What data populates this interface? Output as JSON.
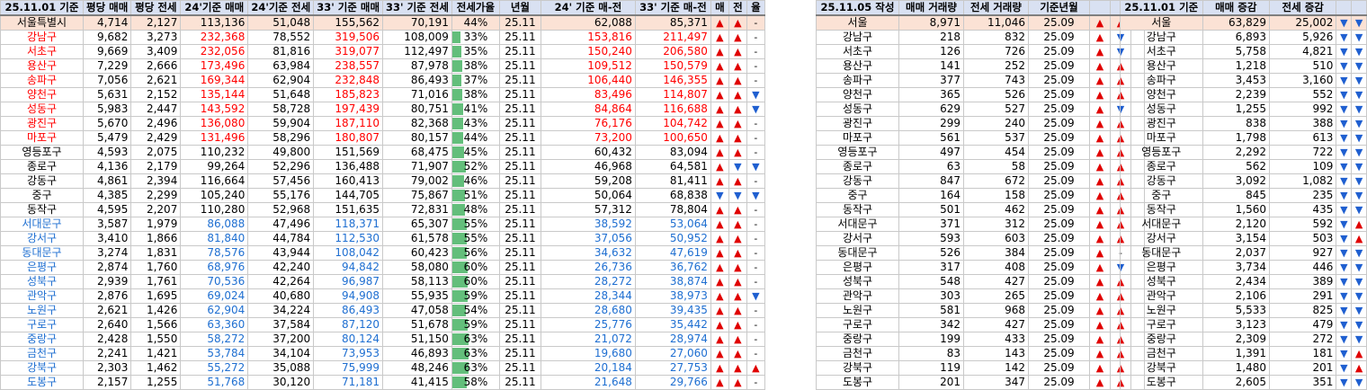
{
  "main": {
    "headers": [
      "25.11.01 기준",
      "평당 매매",
      "평당 전세",
      "24'기준 매매",
      "24'기준 전세",
      "33' 기준 매매",
      "33' 기준 전세",
      "전세가율",
      "년월",
      "24' 기준 매-전",
      "33' 기준 매-전",
      "매",
      "전",
      "율"
    ],
    "city": {
      "name": "서울특별시",
      "pm": "4,714",
      "pj": "2,127",
      "m24": "113,136",
      "j24": "51,048",
      "m33": "155,562",
      "j33": "70,191",
      "ratio": "44%",
      "ratio_value": 44,
      "ym": "25.11",
      "d24": "62,088",
      "d33": "85,371",
      "a": "up",
      "b": "up",
      "c": "-"
    },
    "rows": [
      {
        "name": "강남구",
        "c": "red",
        "pm": "9,682",
        "pj": "3,273",
        "m24": "232,368",
        "j24": "78,552",
        "m33": "319,506",
        "j33": "108,009",
        "ratio": "33%",
        "ratio_value": 33,
        "ym": "25.11",
        "d24": "153,816",
        "d33": "211,497",
        "a": "up",
        "b": "up",
        "r": "-"
      },
      {
        "name": "서초구",
        "c": "red",
        "pm": "9,669",
        "pj": "3,409",
        "m24": "232,056",
        "j24": "81,816",
        "m33": "319,077",
        "j33": "112,497",
        "ratio": "35%",
        "ratio_value": 35,
        "ym": "25.11",
        "d24": "150,240",
        "d33": "206,580",
        "a": "up",
        "b": "up",
        "r": "-"
      },
      {
        "name": "용산구",
        "c": "red",
        "pm": "7,229",
        "pj": "2,666",
        "m24": "173,496",
        "j24": "63,984",
        "m33": "238,557",
        "j33": "87,978",
        "ratio": "38%",
        "ratio_value": 38,
        "ym": "25.11",
        "d24": "109,512",
        "d33": "150,579",
        "a": "up",
        "b": "up",
        "r": "-"
      },
      {
        "name": "송파구",
        "c": "red",
        "pm": "7,056",
        "pj": "2,621",
        "m24": "169,344",
        "j24": "62,904",
        "m33": "232,848",
        "j33": "86,493",
        "ratio": "37%",
        "ratio_value": 37,
        "ym": "25.11",
        "d24": "106,440",
        "d33": "146,355",
        "a": "up",
        "b": "up",
        "r": "-"
      },
      {
        "name": "양천구",
        "c": "red",
        "pm": "5,631",
        "pj": "2,152",
        "m24": "135,144",
        "j24": "51,648",
        "m33": "185,823",
        "j33": "71,016",
        "ratio": "38%",
        "ratio_value": 38,
        "ym": "25.11",
        "d24": "83,496",
        "d33": "114,807",
        "a": "up",
        "b": "up",
        "r": "down"
      },
      {
        "name": "성동구",
        "c": "red",
        "pm": "5,983",
        "pj": "2,447",
        "m24": "143,592",
        "j24": "58,728",
        "m33": "197,439",
        "j33": "80,751",
        "ratio": "41%",
        "ratio_value": 41,
        "ym": "25.11",
        "d24": "84,864",
        "d33": "116,688",
        "a": "up",
        "b": "up",
        "r": "down"
      },
      {
        "name": "광진구",
        "c": "red",
        "pm": "5,670",
        "pj": "2,496",
        "m24": "136,080",
        "j24": "59,904",
        "m33": "187,110",
        "j33": "82,368",
        "ratio": "43%",
        "ratio_value": 43,
        "ym": "25.11",
        "d24": "76,176",
        "d33": "104,742",
        "a": "up",
        "b": "up",
        "r": "-"
      },
      {
        "name": "마포구",
        "c": "red",
        "pm": "5,479",
        "pj": "2,429",
        "m24": "131,496",
        "j24": "58,296",
        "m33": "180,807",
        "j33": "80,157",
        "ratio": "44%",
        "ratio_value": 44,
        "ym": "25.11",
        "d24": "73,200",
        "d33": "100,650",
        "a": "up",
        "b": "up",
        "r": "-"
      },
      {
        "name": "영등포구",
        "c": "blk",
        "pm": "4,593",
        "pj": "2,075",
        "m24": "110,232",
        "j24": "49,800",
        "m33": "151,569",
        "j33": "68,475",
        "ratio": "45%",
        "ratio_value": 45,
        "ym": "25.11",
        "d24": "60,432",
        "d33": "83,094",
        "a": "up",
        "b": "up",
        "r": "-"
      },
      {
        "name": "종로구",
        "c": "blk",
        "pm": "4,136",
        "pj": "2,179",
        "m24": "99,264",
        "j24": "52,296",
        "m33": "136,488",
        "j33": "71,907",
        "ratio": "52%",
        "ratio_value": 52,
        "ym": "25.11",
        "d24": "46,968",
        "d33": "64,581",
        "a": "up",
        "b": "down",
        "r": "down"
      },
      {
        "name": "강동구",
        "c": "blk",
        "pm": "4,861",
        "pj": "2,394",
        "m24": "116,664",
        "j24": "57,456",
        "m33": "160,413",
        "j33": "79,002",
        "ratio": "46%",
        "ratio_value": 46,
        "ym": "25.11",
        "d24": "59,208",
        "d33": "81,411",
        "a": "up",
        "b": "up",
        "r": "-"
      },
      {
        "name": "중구",
        "c": "blk",
        "pm": "4,385",
        "pj": "2,299",
        "m24": "105,240",
        "j24": "55,176",
        "m33": "144,705",
        "j33": "75,867",
        "ratio": "51%",
        "ratio_value": 51,
        "ym": "25.11",
        "d24": "50,064",
        "d33": "68,838",
        "a": "down",
        "b": "down",
        "r": "down"
      },
      {
        "name": "동작구",
        "c": "blk",
        "pm": "4,595",
        "pj": "2,207",
        "m24": "110,280",
        "j24": "52,968",
        "m33": "151,635",
        "j33": "72,831",
        "ratio": "48%",
        "ratio_value": 48,
        "ym": "25.11",
        "d24": "57,312",
        "d33": "78,804",
        "a": "up",
        "b": "up",
        "r": "-"
      },
      {
        "name": "서대문구",
        "c": "blue",
        "pm": "3,587",
        "pj": "1,979",
        "m24": "86,088",
        "j24": "47,496",
        "m33": "118,371",
        "j33": "65,307",
        "ratio": "55%",
        "ratio_value": 55,
        "ym": "25.11",
        "d24": "38,592",
        "d33": "53,064",
        "a": "up",
        "b": "up",
        "r": "-"
      },
      {
        "name": "강서구",
        "c": "blue",
        "pm": "3,410",
        "pj": "1,866",
        "m24": "81,840",
        "j24": "44,784",
        "m33": "112,530",
        "j33": "61,578",
        "ratio": "55%",
        "ratio_value": 55,
        "ym": "25.11",
        "d24": "37,056",
        "d33": "50,952",
        "a": "up",
        "b": "up",
        "r": "-"
      },
      {
        "name": "동대문구",
        "c": "blue",
        "pm": "3,274",
        "pj": "1,831",
        "m24": "78,576",
        "j24": "43,944",
        "m33": "108,042",
        "j33": "60,423",
        "ratio": "56%",
        "ratio_value": 56,
        "ym": "25.11",
        "d24": "34,632",
        "d33": "47,619",
        "a": "up",
        "b": "up",
        "r": "-"
      },
      {
        "name": "은평구",
        "c": "blue",
        "pm": "2,874",
        "pj": "1,760",
        "m24": "68,976",
        "j24": "42,240",
        "m33": "94,842",
        "j33": "58,080",
        "ratio": "60%",
        "ratio_value": 60,
        "ym": "25.11",
        "d24": "26,736",
        "d33": "36,762",
        "a": "up",
        "b": "up",
        "r": "-"
      },
      {
        "name": "성북구",
        "c": "blue",
        "pm": "2,939",
        "pj": "1,761",
        "m24": "70,536",
        "j24": "42,264",
        "m33": "96,987",
        "j33": "58,113",
        "ratio": "60%",
        "ratio_value": 60,
        "ym": "25.11",
        "d24": "28,272",
        "d33": "38,874",
        "a": "up",
        "b": "up",
        "r": "-"
      },
      {
        "name": "관악구",
        "c": "blue",
        "pm": "2,876",
        "pj": "1,695",
        "m24": "69,024",
        "j24": "40,680",
        "m33": "94,908",
        "j33": "55,935",
        "ratio": "59%",
        "ratio_value": 59,
        "ym": "25.11",
        "d24": "28,344",
        "d33": "38,973",
        "a": "up",
        "b": "up",
        "r": "down"
      },
      {
        "name": "노원구",
        "c": "blue",
        "pm": "2,621",
        "pj": "1,426",
        "m24": "62,904",
        "j24": "34,224",
        "m33": "86,493",
        "j33": "47,058",
        "ratio": "54%",
        "ratio_value": 54,
        "ym": "25.11",
        "d24": "28,680",
        "d33": "39,435",
        "a": "up",
        "b": "up",
        "r": "-"
      },
      {
        "name": "구로구",
        "c": "blue",
        "pm": "2,640",
        "pj": "1,566",
        "m24": "63,360",
        "j24": "37,584",
        "m33": "87,120",
        "j33": "51,678",
        "ratio": "59%",
        "ratio_value": 59,
        "ym": "25.11",
        "d24": "25,776",
        "d33": "35,442",
        "a": "up",
        "b": "up",
        "r": "-"
      },
      {
        "name": "중랑구",
        "c": "blue",
        "pm": "2,428",
        "pj": "1,550",
        "m24": "58,272",
        "j24": "37,200",
        "m33": "80,124",
        "j33": "51,150",
        "ratio": "63%",
        "ratio_value": 63,
        "ym": "25.11",
        "d24": "21,072",
        "d33": "28,974",
        "a": "up",
        "b": "up",
        "r": "-"
      },
      {
        "name": "금천구",
        "c": "blue",
        "pm": "2,241",
        "pj": "1,421",
        "m24": "53,784",
        "j24": "34,104",
        "m33": "73,953",
        "j33": "46,893",
        "ratio": "63%",
        "ratio_value": 63,
        "ym": "25.11",
        "d24": "19,680",
        "d33": "27,060",
        "a": "up",
        "b": "up",
        "r": "-"
      },
      {
        "name": "강북구",
        "c": "blue",
        "pm": "2,303",
        "pj": "1,462",
        "m24": "55,272",
        "j24": "35,088",
        "m33": "75,999",
        "j33": "48,246",
        "ratio": "63%",
        "ratio_value": 63,
        "ym": "25.11",
        "d24": "20,184",
        "d33": "27,753",
        "a": "up",
        "b": "up",
        "r": "up"
      },
      {
        "name": "도봉구",
        "c": "blue",
        "pm": "2,157",
        "pj": "1,255",
        "m24": "51,768",
        "j24": "30,120",
        "m33": "71,181",
        "j33": "41,415",
        "ratio": "58%",
        "ratio_value": 58,
        "ym": "25.11",
        "d24": "21,648",
        "d33": "29,766",
        "a": "up",
        "b": "up",
        "r": "-"
      }
    ]
  },
  "volume": {
    "headers": [
      "25.11.05 작성",
      "매매 거래량",
      "전세 거래량",
      "기준년월"
    ],
    "city": {
      "name": "서울",
      "sv": "8,971",
      "jv": "11,046",
      "ym": "25.09",
      "a": "up",
      "b": "up"
    },
    "rows": [
      {
        "name": "강남구",
        "sv": "218",
        "jv": "832",
        "ym": "25.09",
        "a": "up",
        "b": "down"
      },
      {
        "name": "서초구",
        "sv": "126",
        "jv": "726",
        "ym": "25.09",
        "a": "up",
        "b": "down"
      },
      {
        "name": "용산구",
        "sv": "141",
        "jv": "252",
        "ym": "25.09",
        "a": "up",
        "b": "up"
      },
      {
        "name": "송파구",
        "sv": "377",
        "jv": "743",
        "ym": "25.09",
        "a": "up",
        "b": "up"
      },
      {
        "name": "양천구",
        "sv": "365",
        "jv": "526",
        "ym": "25.09",
        "a": "up",
        "b": "up"
      },
      {
        "name": "성동구",
        "sv": "629",
        "jv": "527",
        "ym": "25.09",
        "a": "up",
        "b": "down"
      },
      {
        "name": "광진구",
        "sv": "299",
        "jv": "240",
        "ym": "25.09",
        "a": "up",
        "b": "up"
      },
      {
        "name": "마포구",
        "sv": "561",
        "jv": "537",
        "ym": "25.09",
        "a": "up",
        "b": "up"
      },
      {
        "name": "영등포구",
        "sv": "497",
        "jv": "454",
        "ym": "25.09",
        "a": "up",
        "b": "up"
      },
      {
        "name": "종로구",
        "sv": "63",
        "jv": "58",
        "ym": "25.09",
        "a": "up",
        "b": "up"
      },
      {
        "name": "강동구",
        "sv": "847",
        "jv": "672",
        "ym": "25.09",
        "a": "up",
        "b": "up"
      },
      {
        "name": "중구",
        "sv": "164",
        "jv": "158",
        "ym": "25.09",
        "a": "up",
        "b": "up"
      },
      {
        "name": "동작구",
        "sv": "501",
        "jv": "462",
        "ym": "25.09",
        "a": "up",
        "b": "up"
      },
      {
        "name": "서대문구",
        "sv": "371",
        "jv": "312",
        "ym": "25.09",
        "a": "up",
        "b": "up"
      },
      {
        "name": "강서구",
        "sv": "593",
        "jv": "603",
        "ym": "25.09",
        "a": "up",
        "b": "up"
      },
      {
        "name": "동대문구",
        "sv": "526",
        "jv": "384",
        "ym": "25.09",
        "a": "up",
        "b": "-"
      },
      {
        "name": "은평구",
        "sv": "317",
        "jv": "408",
        "ym": "25.09",
        "a": "up",
        "b": "down"
      },
      {
        "name": "성북구",
        "sv": "548",
        "jv": "427",
        "ym": "25.09",
        "a": "up",
        "b": "up"
      },
      {
        "name": "관악구",
        "sv": "303",
        "jv": "265",
        "ym": "25.09",
        "a": "up",
        "b": "up"
      },
      {
        "name": "노원구",
        "sv": "581",
        "jv": "968",
        "ym": "25.09",
        "a": "up",
        "b": "up"
      },
      {
        "name": "구로구",
        "sv": "342",
        "jv": "427",
        "ym": "25.09",
        "a": "up",
        "b": "up"
      },
      {
        "name": "중랑구",
        "sv": "199",
        "jv": "433",
        "ym": "25.09",
        "a": "up",
        "b": "up"
      },
      {
        "name": "금천구",
        "sv": "83",
        "jv": "143",
        "ym": "25.09",
        "a": "up",
        "b": "up"
      },
      {
        "name": "강북구",
        "sv": "119",
        "jv": "142",
        "ym": "25.09",
        "a": "up",
        "b": "up"
      },
      {
        "name": "도봉구",
        "sv": "201",
        "jv": "347",
        "ym": "25.09",
        "a": "up",
        "b": "up"
      }
    ]
  },
  "change": {
    "headers": [
      "25.11.01 기준",
      "매매 증감",
      "전세 증감"
    ],
    "city": {
      "name": "서울",
      "sv": "63,829",
      "jv": "25,002",
      "a": "down",
      "b": "down"
    },
    "rows": [
      {
        "name": "강남구",
        "sv": "6,893",
        "jv": "5,926",
        "a": "down",
        "b": "down"
      },
      {
        "name": "서초구",
        "sv": "5,758",
        "jv": "4,821",
        "a": "down",
        "b": "down"
      },
      {
        "name": "용산구",
        "sv": "1,218",
        "jv": "510",
        "a": "down",
        "b": "down"
      },
      {
        "name": "송파구",
        "sv": "3,453",
        "jv": "3,160",
        "a": "down",
        "b": "down"
      },
      {
        "name": "양천구",
        "sv": "2,239",
        "jv": "552",
        "a": "down",
        "b": "down"
      },
      {
        "name": "성동구",
        "sv": "1,255",
        "jv": "992",
        "a": "down",
        "b": "down"
      },
      {
        "name": "광진구",
        "sv": "838",
        "jv": "388",
        "a": "down",
        "b": "down"
      },
      {
        "name": "마포구",
        "sv": "1,798",
        "jv": "613",
        "a": "down",
        "b": "down"
      },
      {
        "name": "영등포구",
        "sv": "2,292",
        "jv": "722",
        "a": "down",
        "b": "down"
      },
      {
        "name": "종로구",
        "sv": "562",
        "jv": "109",
        "a": "down",
        "b": "down"
      },
      {
        "name": "강동구",
        "sv": "3,092",
        "jv": "1,082",
        "a": "down",
        "b": "down"
      },
      {
        "name": "중구",
        "sv": "845",
        "jv": "235",
        "a": "down",
        "b": "down"
      },
      {
        "name": "동작구",
        "sv": "1,560",
        "jv": "435",
        "a": "down",
        "b": "down"
      },
      {
        "name": "서대문구",
        "sv": "2,120",
        "jv": "592",
        "a": "down",
        "b": "up"
      },
      {
        "name": "강서구",
        "sv": "3,154",
        "jv": "503",
        "a": "down",
        "b": "up"
      },
      {
        "name": "동대문구",
        "sv": "2,037",
        "jv": "927",
        "a": "down",
        "b": "down"
      },
      {
        "name": "은평구",
        "sv": "3,734",
        "jv": "446",
        "a": "down",
        "b": "down"
      },
      {
        "name": "성북구",
        "sv": "2,434",
        "jv": "389",
        "a": "down",
        "b": "down"
      },
      {
        "name": "관악구",
        "sv": "2,106",
        "jv": "291",
        "a": "down",
        "b": "down"
      },
      {
        "name": "노원구",
        "sv": "5,533",
        "jv": "825",
        "a": "down",
        "b": "down"
      },
      {
        "name": "구로구",
        "sv": "3,123",
        "jv": "479",
        "a": "down",
        "b": "down"
      },
      {
        "name": "중랑구",
        "sv": "2,309",
        "jv": "272",
        "a": "down",
        "b": "down"
      },
      {
        "name": "금천구",
        "sv": "1,391",
        "jv": "181",
        "a": "down",
        "b": "up"
      },
      {
        "name": "강북구",
        "sv": "1,480",
        "jv": "201",
        "a": "down",
        "b": "up"
      },
      {
        "name": "도봉구",
        "sv": "2,605",
        "jv": "351",
        "a": "down",
        "b": "down"
      }
    ]
  },
  "colors": {
    "red": "#ff0000",
    "blue": "#1f6fd1",
    "up": "#e00000",
    "down": "#1f5fd0",
    "header_bg": "#d9e1f2",
    "city_bg": "#fbe2d5",
    "bar": "#63be7b"
  },
  "glyphs": {
    "up": "▲",
    "down": "▼",
    "-": "-"
  }
}
